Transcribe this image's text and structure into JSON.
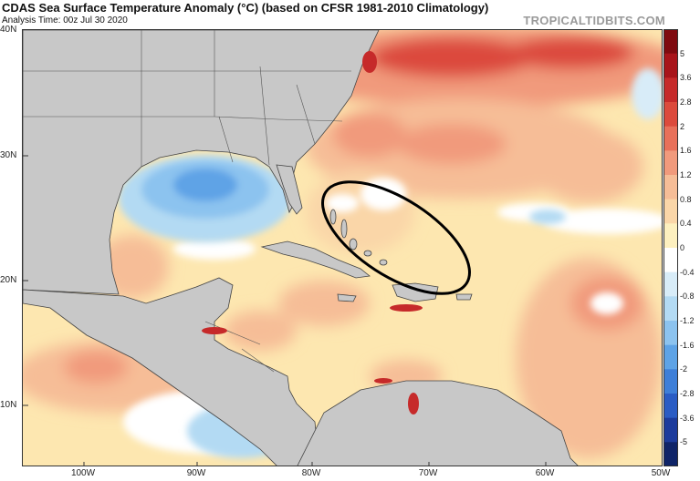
{
  "header": {
    "title": "CDAS Sea Surface Temperature Anomaly (°C) (based on CFSR 1981-2010 Climatology)",
    "subtitle": "Analysis Time: 00z Jul 30 2020",
    "brand": "TROPICALTIDBITS.COM"
  },
  "map": {
    "lat_labels": [
      "40N",
      "30N",
      "20N",
      "10N"
    ],
    "lon_labels": [
      "100W",
      "90W",
      "80W",
      "70W",
      "60W",
      "50W"
    ],
    "land_color": "#c8c8c8",
    "annotation": "black ellipse highlighting the Bahamas region"
  },
  "colorbar": {
    "unit": "°C",
    "ticks": [
      "5",
      "3.6",
      "2.8",
      "2",
      "1.6",
      "1.2",
      "0.8",
      "0.4",
      "0",
      "-0.4",
      "-0.8",
      "-1.2",
      "-1.6",
      "-2",
      "-2.8",
      "-3.6",
      "-5"
    ],
    "colors": [
      "#7f0a0f",
      "#a8141a",
      "#c62a2a",
      "#dc4a3c",
      "#e8705a",
      "#f19a7c",
      "#f6bd97",
      "#fad6a8",
      "#fdf0bf",
      "#ffffff",
      "#d8ecf8",
      "#b3daf3",
      "#8cc3ef",
      "#5ea3e6",
      "#3e7fd8",
      "#2a5cc4",
      "#1c3b9c",
      "#0f2468"
    ]
  }
}
